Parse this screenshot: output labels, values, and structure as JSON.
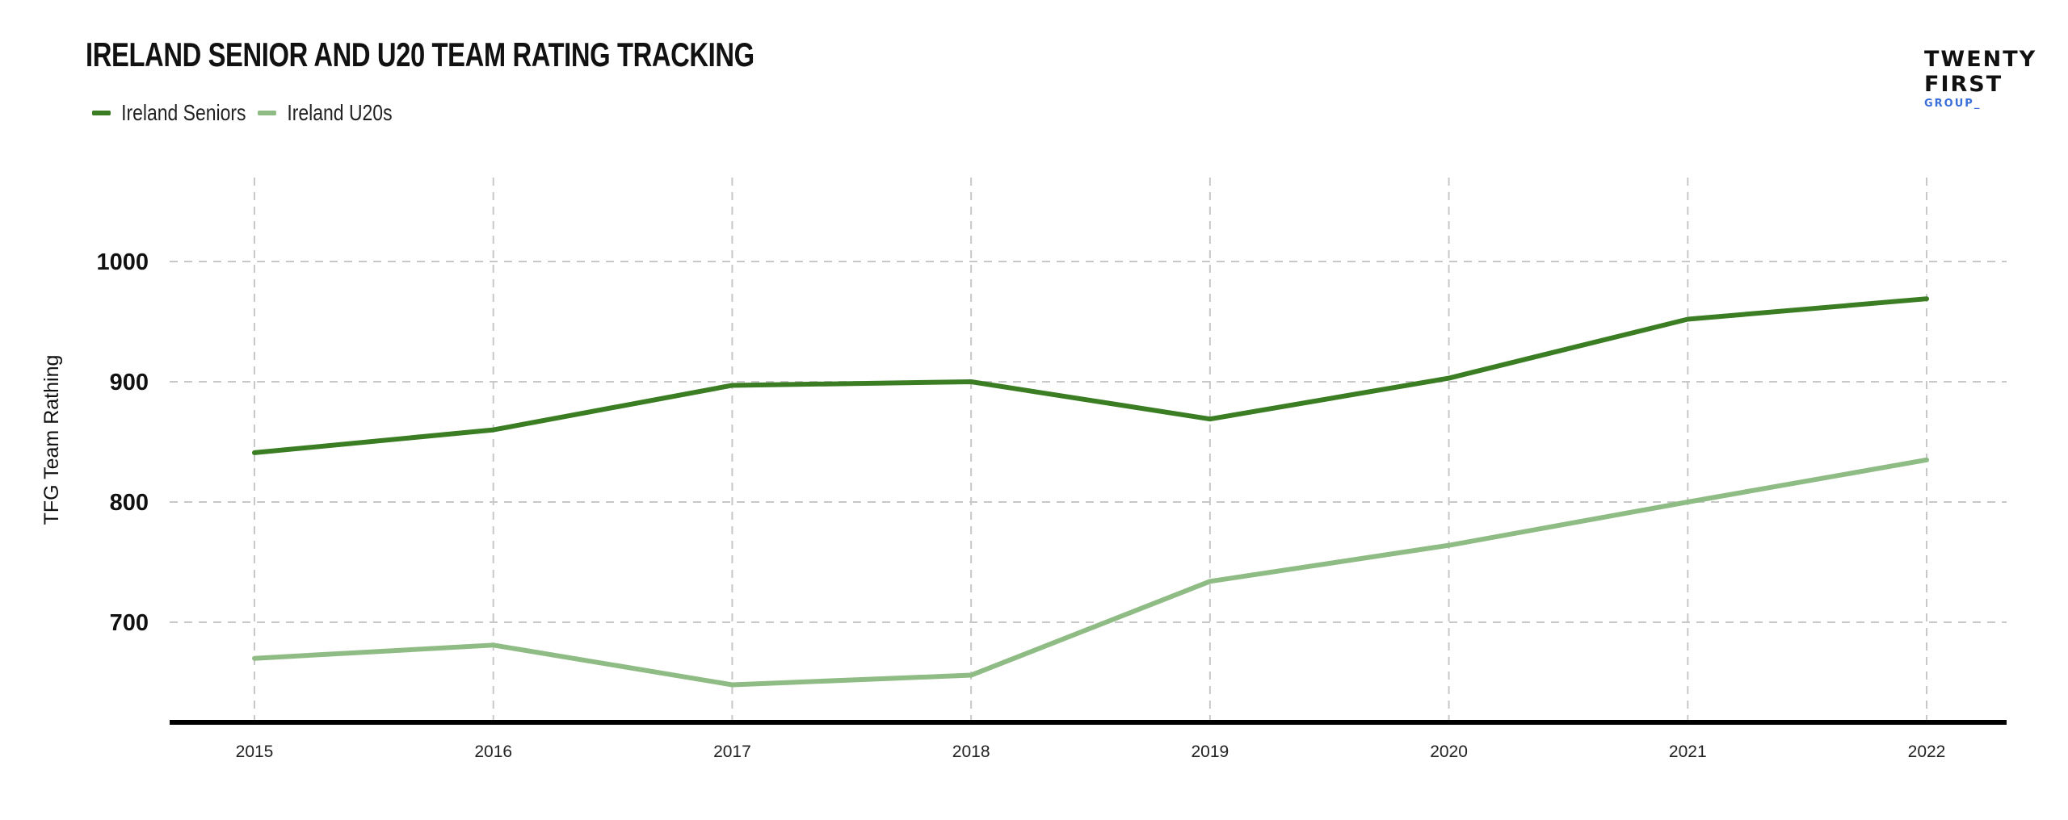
{
  "chart_data": {
    "type": "line",
    "title": "IRELAND SENIOR AND U20 TEAM RATING TRACKING",
    "xlabel": "",
    "ylabel": "TFG Team Rathing",
    "x": [
      "2015",
      "2016",
      "2017",
      "2018",
      "2019",
      "2020",
      "2021",
      "2022"
    ],
    "yticks": [
      "700",
      "800",
      "900",
      "1000"
    ],
    "ylim": [
      617,
      1070
    ],
    "grid": true,
    "legend_position": "top-left",
    "series": [
      {
        "name": "Ireland Seniors",
        "color": "#3a7d22",
        "values": [
          841,
          860,
          897,
          900,
          869,
          903,
          952,
          969
        ]
      },
      {
        "name": "Ireland U20s",
        "color": "#8fbc84",
        "values": [
          670,
          681,
          648,
          656,
          734,
          764,
          800,
          835
        ]
      }
    ]
  },
  "logo": {
    "line1": "TWENTY",
    "line2": "FIRST",
    "line3": "GROUP_"
  }
}
